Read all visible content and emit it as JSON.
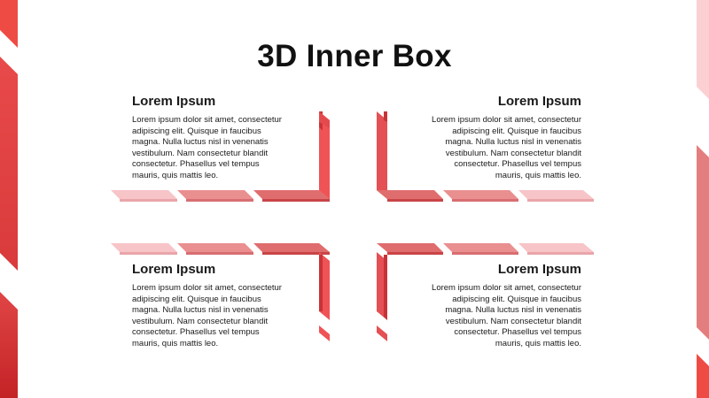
{
  "slide": {
    "title": "3D Inner Box",
    "colors": {
      "accent_dark": "#e05353",
      "accent_mid": "#ea8f90",
      "accent_light": "#f7c4c7",
      "edge_red": "#d63535"
    },
    "quadrants": [
      {
        "position": "top-left",
        "heading": "Lorem Ipsum",
        "body": "Lorem ipsum dolor sit amet, consectetur adipiscing elit. Quisque in faucibus magna. Nulla luctus nisl in venenatis vestibulum. Nam consectetur blandit consectetur. Phasellus vel tempus mauris, quis mattis leo."
      },
      {
        "position": "top-right",
        "heading": "Lorem Ipsum",
        "body": "Lorem ipsum dolor sit amet, consectetur adipiscing elit. Quisque in faucibus magna. Nulla luctus nisl in venenatis vestibulum. Nam consectetur blandit consectetur. Phasellus vel tempus mauris, quis mattis leo."
      },
      {
        "position": "bottom-left",
        "heading": "Lorem Ipsum",
        "body": "Lorem ipsum dolor sit amet, consectetur adipiscing elit. Quisque in faucibus magna. Nulla luctus nisl in venenatis vestibulum. Nam consectetur blandit consectetur. Phasellus vel tempus mauris, quis mattis leo."
      },
      {
        "position": "bottom-right",
        "heading": "Lorem Ipsum",
        "body": "Lorem ipsum dolor sit amet, consectetur adipiscing elit. Quisque in faucibus magna. Nulla luctus nisl in venenatis vestibulum. Nam consectetur blandit consectetur. Phasellus vel tempus mauris, quis mattis leo."
      }
    ]
  }
}
